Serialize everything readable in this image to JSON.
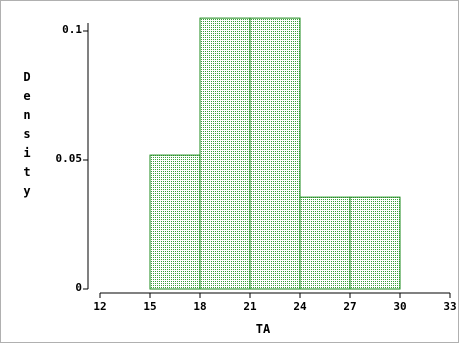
{
  "chart_data": {
    "type": "bar",
    "subtype": "histogram",
    "xlabel": "TA",
    "ylabel": "Density",
    "xlim": [
      12,
      33
    ],
    "ylim": [
      0,
      0.1
    ],
    "x_ticks": [
      "12",
      "15",
      "18",
      "21",
      "24",
      "27",
      "30",
      "33"
    ],
    "y_ticks": [
      "0",
      "0.05",
      "0.1"
    ],
    "bins": [
      {
        "start": 15,
        "end": 18,
        "value": 0.0519
      },
      {
        "start": 18,
        "end": 21,
        "value": 0.105
      },
      {
        "start": 21,
        "end": 24,
        "value": 0.105
      },
      {
        "start": 24,
        "end": 27,
        "value": 0.0356
      },
      {
        "start": 27,
        "end": 30,
        "value": 0.0356
      }
    ],
    "grid": false,
    "legend": "none",
    "colors": {
      "bar_fill": "#d2ecd2",
      "bar_edge": "#1a8a1a",
      "axis": "#000000"
    }
  }
}
